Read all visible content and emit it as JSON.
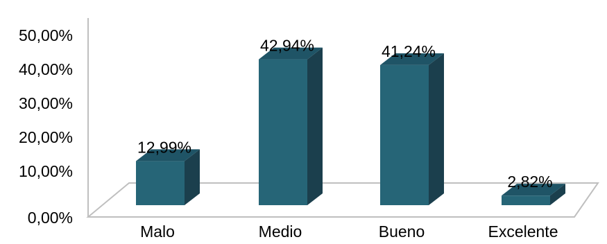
{
  "chart_data": {
    "type": "bar",
    "categories": [
      "Malo",
      "Medio",
      "Bueno",
      "Excelente"
    ],
    "values": [
      12.99,
      42.94,
      41.24,
      2.82
    ],
    "data_labels": [
      "12,99%",
      "42,94%",
      "41,24%",
      "2,82%"
    ],
    "title": "",
    "xlabel": "",
    "ylabel": "",
    "ylim": [
      0,
      50
    ],
    "yticks": [
      0,
      10,
      20,
      30,
      40,
      50
    ],
    "ytick_labels": [
      "0,00%",
      "10,00%",
      "20,00%",
      "30,00%",
      "40,00%",
      "50,00%"
    ],
    "grid": false,
    "legend": "none",
    "style": "3d-column",
    "colors": {
      "bar_front": "#266577",
      "bar_side": "#1b3f4d",
      "bar_top": "#1f5466",
      "axis": "#bfbfbf"
    }
  }
}
